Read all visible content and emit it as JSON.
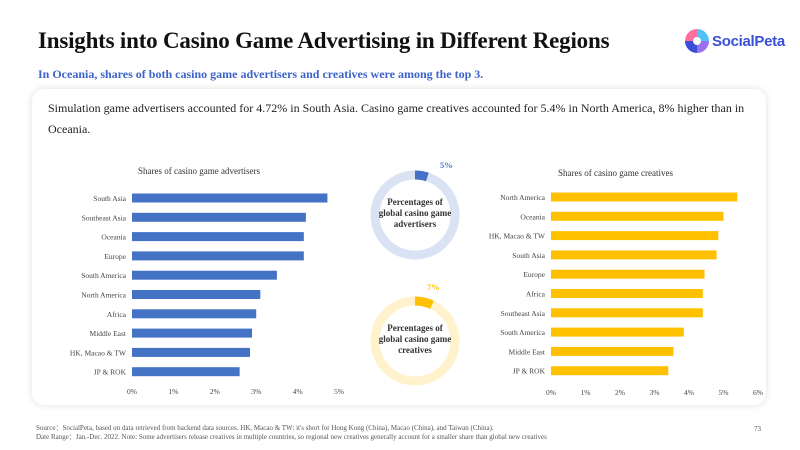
{
  "title": "Insights into Casino Game Advertising in Different Regions",
  "logo_text": "SocialPeta",
  "subtitle": "In Oceania, shares of both casino game advertisers and creatives were among the top 3.",
  "summary": "Simulation game advertisers accounted for 4.72% in South Asia. Casino game creatives accounted for 5.4% in North America, 8% higher than in Oceania.",
  "footnote_line1": "Source：SocialPeta, based on data retrieved from backend data sources. HK, Macao & TW: it's short for Hong Kong (China), Macao (China), and Taiwan (China).",
  "footnote_line2": "Date Range：Jan.-Dec. 2022. Note: Some advertisers release creatives in multiple countries, so regional new creatives generally account for a smaller share than global new creatives",
  "page_number": "73",
  "colors": {
    "advertisers": "#4472c4",
    "creatives": "#ffc000",
    "title_blue": "#3b63c9"
  },
  "chart_data": [
    {
      "type": "bar",
      "orientation": "horizontal",
      "title": "Shares of casino game advertisers",
      "categories": [
        "South Asia",
        "Southeast Asia",
        "Oceania",
        "Europe",
        "South America",
        "North America",
        "Africa",
        "Middle East",
        "HK, Macao & TW",
        "JP & ROK"
      ],
      "values": [
        4.72,
        4.2,
        4.15,
        4.15,
        3.5,
        3.1,
        3.0,
        2.9,
        2.85,
        2.6
      ],
      "unit": "%",
      "xlim": [
        0,
        5
      ],
      "ticks": [
        "0%",
        "1%",
        "2%",
        "3%",
        "4%",
        "5%"
      ],
      "color": "#4472c4"
    },
    {
      "type": "pie",
      "style": "donut",
      "label": "Percentages of global casino game advertisers",
      "value": 5,
      "value_label": "5%",
      "color": "#4472c4",
      "track_color": "#dae3f3"
    },
    {
      "type": "pie",
      "style": "donut",
      "label": "Percentages of global casino game creatives",
      "value": 7,
      "value_label": "7%",
      "color": "#ffc000",
      "track_color": "#fff2cc"
    },
    {
      "type": "bar",
      "orientation": "horizontal",
      "title": "Shares of casino game creatives",
      "categories": [
        "North America",
        "Oceania",
        "HK, Macao & TW",
        "South Asia",
        "Europe",
        "Africa",
        "Southeast Asia",
        "South America",
        "Middle East",
        "JP & ROK"
      ],
      "values": [
        5.4,
        5.0,
        4.85,
        4.8,
        4.45,
        4.4,
        4.4,
        3.85,
        3.55,
        3.4
      ],
      "unit": "%",
      "xlim": [
        0,
        6
      ],
      "ticks": [
        "0%",
        "1%",
        "2%",
        "3%",
        "4%",
        "5%",
        "6%"
      ],
      "color": "#ffc000"
    }
  ]
}
